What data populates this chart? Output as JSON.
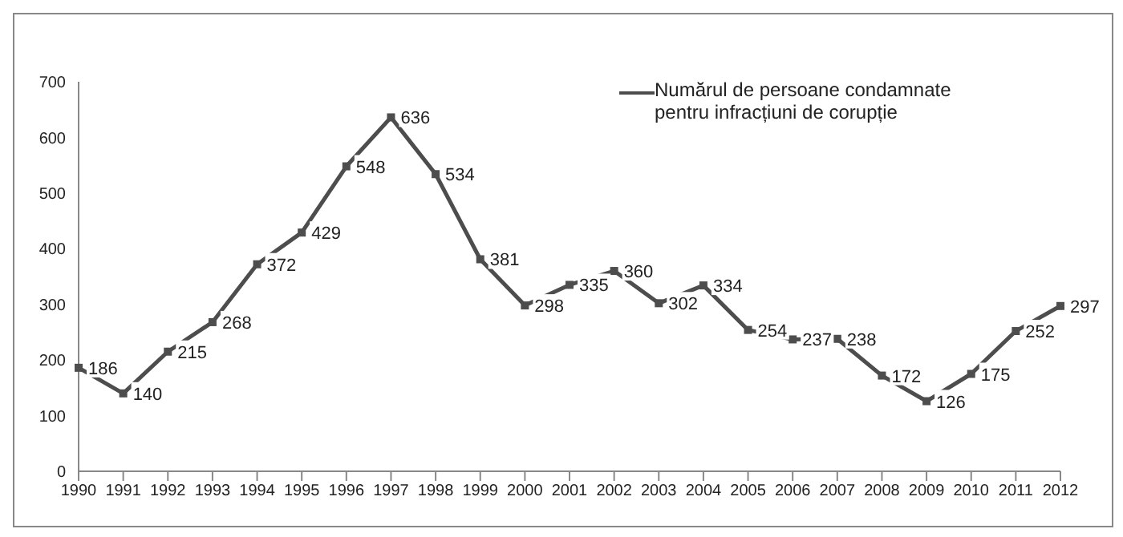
{
  "chart_data": {
    "type": "line",
    "categories": [
      "1990",
      "1991",
      "1992",
      "1993",
      "1994",
      "1995",
      "1996",
      "1997",
      "1998",
      "1999",
      "2000",
      "2001",
      "2002",
      "2003",
      "2004",
      "2005",
      "2006",
      "2007",
      "2008",
      "2009",
      "2010",
      "2011",
      "2012"
    ],
    "series": [
      {
        "name": "Numărul de persoane condamnate pentru infracțiuni de corupție",
        "color": "#4d4d4d",
        "values": [
          186,
          140,
          215,
          268,
          372,
          429,
          548,
          636,
          534,
          381,
          298,
          335,
          360,
          302,
          334,
          254,
          237,
          238,
          172,
          126,
          175,
          252,
          297
        ]
      }
    ],
    "ylim": [
      0,
      700
    ],
    "yticks": [
      0,
      100,
      200,
      300,
      400,
      500,
      600,
      700
    ],
    "grid": false,
    "legend": "top right",
    "marker": "square",
    "data_labels": true
  }
}
